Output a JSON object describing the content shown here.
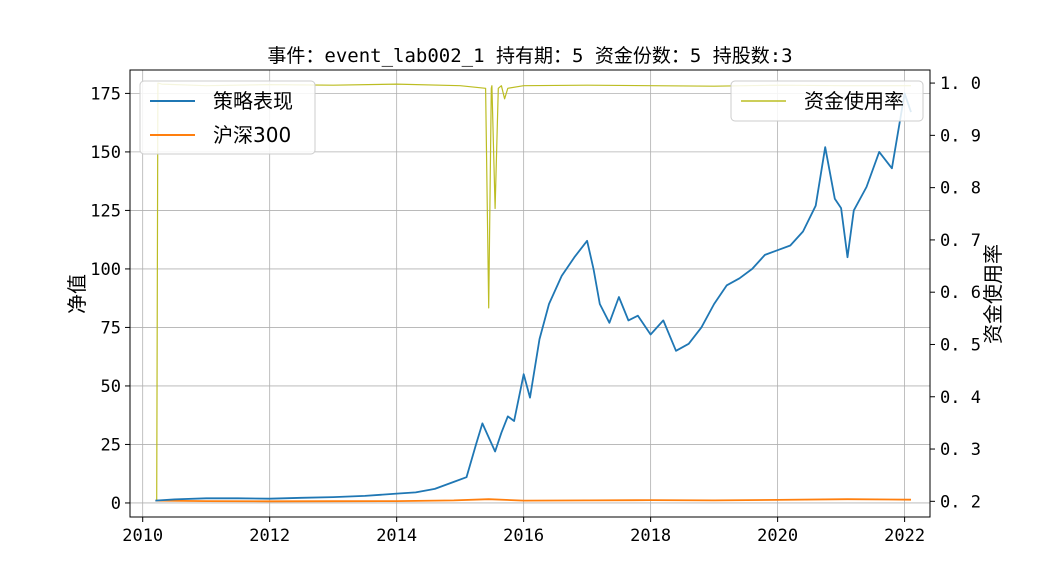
{
  "chart_data": {
    "type": "line",
    "title": "事件：event_lab002_1 持有期：5 资金份数：5 持股数:3",
    "ylabel_left": "净值",
    "ylabel_right": "资金使用率",
    "x_ticks": [
      "2010",
      "2012",
      "2014",
      "2016",
      "2018",
      "2020",
      "2022"
    ],
    "y_ticks_left": [
      "0",
      "25",
      "50",
      "75",
      "100",
      "125",
      "150",
      "175"
    ],
    "y_ticks_right": [
      "0. 2",
      "0. 3",
      "0. 4",
      "0. 5",
      "0. 6",
      "0. 7",
      "0. 8",
      "0. 9",
      "1. 0"
    ],
    "xlim": [
      2009.8,
      2022.4
    ],
    "ylim_left": [
      -6,
      185
    ],
    "ylim_right": [
      0.17,
      1.025
    ],
    "grid": true,
    "legend_left_position": "top-left",
    "legend_right_position": "top-right",
    "series": [
      {
        "name": "策略表现",
        "axis": "left",
        "color": "#1f77b4",
        "x": [
          2010.2,
          2010.5,
          2011.0,
          2011.5,
          2012.0,
          2012.5,
          2013.0,
          2013.5,
          2014.0,
          2014.3,
          2014.6,
          2014.9,
          2015.1,
          2015.25,
          2015.35,
          2015.45,
          2015.55,
          2015.65,
          2015.75,
          2015.85,
          2016.0,
          2016.1,
          2016.25,
          2016.4,
          2016.6,
          2016.8,
          2017.0,
          2017.1,
          2017.2,
          2017.35,
          2017.5,
          2017.65,
          2017.8,
          2018.0,
          2018.2,
          2018.4,
          2018.6,
          2018.8,
          2019.0,
          2019.2,
          2019.4,
          2019.6,
          2019.8,
          2020.0,
          2020.2,
          2020.4,
          2020.6,
          2020.75,
          2020.9,
          2021.0,
          2021.1,
          2021.2,
          2021.4,
          2021.6,
          2021.8,
          2022.0,
          2022.1
        ],
        "y": [
          1,
          1.5,
          2,
          2,
          1.8,
          2.2,
          2.5,
          3,
          4,
          4.5,
          6,
          9,
          11,
          25,
          34,
          28,
          22,
          30,
          37,
          35,
          55,
          45,
          70,
          85,
          97,
          105,
          112,
          100,
          85,
          77,
          88,
          78,
          80,
          72,
          78,
          65,
          68,
          75,
          85,
          93,
          96,
          100,
          106,
          108,
          110,
          116,
          127,
          152,
          130,
          126,
          105,
          125,
          135,
          150,
          143,
          175,
          167
        ]
      },
      {
        "name": "沪深300",
        "axis": "left",
        "color": "#ff7f0e",
        "x": [
          2010.2,
          2011.0,
          2012.0,
          2013.0,
          2014.0,
          2014.9,
          2015.45,
          2016.0,
          2017.0,
          2018.0,
          2019.0,
          2020.0,
          2021.1,
          2022.1
        ],
        "y": [
          1,
          0.8,
          0.7,
          0.75,
          0.8,
          1.1,
          1.6,
          1.0,
          1.1,
          1.2,
          1.1,
          1.3,
          1.6,
          1.4
        ]
      },
      {
        "name": "资金使用率",
        "axis": "right",
        "color": "#bcbd22",
        "x": [
          2010.22,
          2010.24,
          2010.3,
          2011.0,
          2012.0,
          2013.0,
          2014.0,
          2015.0,
          2015.4,
          2015.45,
          2015.49,
          2015.5,
          2015.55,
          2015.6,
          2015.65,
          2015.7,
          2015.75,
          2016.0,
          2017.0,
          2018.0,
          2019.0,
          2020.0,
          2021.0,
          2022.1
        ],
        "y": [
          0.2,
          1.0,
          0.998,
          0.995,
          0.997,
          0.996,
          0.998,
          0.995,
          0.99,
          0.57,
          0.99,
          0.995,
          0.76,
          0.99,
          0.995,
          0.97,
          0.99,
          0.995,
          0.996,
          0.995,
          0.994,
          0.996,
          0.995,
          0.995
        ]
      }
    ]
  }
}
